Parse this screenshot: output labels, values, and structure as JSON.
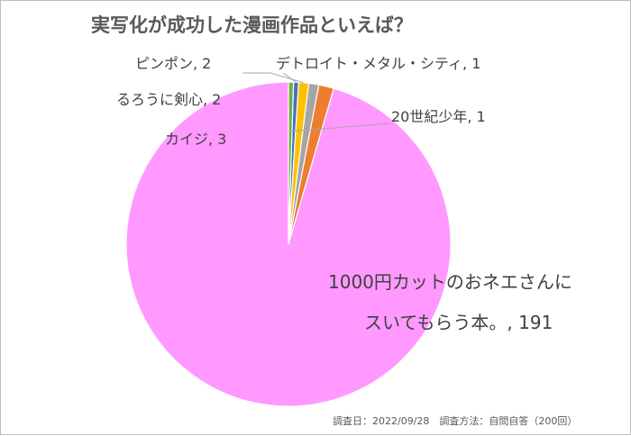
{
  "chart_data": {
    "type": "pie",
    "title": "実写化が成功した漫画作品といえば？",
    "slices": [
      {
        "label": "1000円カットのおネエさんにスいてもらう本。",
        "label_lines": [
          "1000円カットのおネエさんに",
          "スいてもらう本。, 191"
        ],
        "value": 191,
        "color": "#ff99ff"
      },
      {
        "label": "カイジ",
        "value": 3,
        "color": "#ed7d31"
      },
      {
        "label": "るろうに剣心",
        "value": 2,
        "color": "#a5a5a5"
      },
      {
        "label": "ピンポン",
        "value": 2,
        "color": "#ffc000"
      },
      {
        "label": "デトロイト・メタル・シティ",
        "value": 1,
        "color": "#4472c4"
      },
      {
        "label": "20世紀少年",
        "value": 1,
        "color": "#70ad47"
      }
    ],
    "label_texts": {
      "pingpong": "ピンポン, 2",
      "detroit": "デトロイト・メタル・シティ, 1",
      "rurouni": "るろうに剣心, 2",
      "kaiji": "カイジ, 3",
      "century": "20世紀少年, 1"
    },
    "footnote": "調査日：2022/09/28　調査方法：自問自答（200回）",
    "start": "12 o'clock",
    "direction": "counter-clockwise"
  }
}
